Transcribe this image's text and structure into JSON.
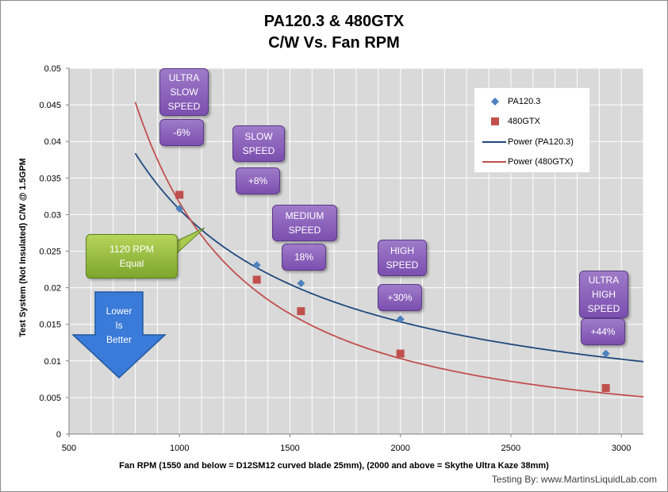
{
  "chart_data": {
    "type": "scatter",
    "title": [
      "PA120.3 & 480GTX",
      "C/W Vs. Fan RPM"
    ],
    "xlabel": "Fan RPM (1550 and below = D12SM12 curved blade 25mm), (2000 and above = Skythe Ultra Kaze 38mm)",
    "ylabel": "Test System (Not Insulated) C/W @ 1.5GPM",
    "xlim": [
      500,
      3100
    ],
    "ylim": [
      0,
      0.05
    ],
    "x_ticks": [
      "500",
      "1000",
      "1500",
      "2000",
      "2500",
      "3000"
    ],
    "x_tick_values": [
      500,
      1000,
      1500,
      2000,
      2500,
      3000
    ],
    "y_ticks": [
      "0",
      "0.005",
      "0.01",
      "0.015",
      "0.02",
      "0.025",
      "0.03",
      "0.035",
      "0.04",
      "0.045",
      "0.05"
    ],
    "y_tick_values": [
      0,
      0.005,
      0.01,
      0.015,
      0.02,
      0.025,
      0.03,
      0.035,
      0.04,
      0.045,
      0.05
    ],
    "grid": true,
    "legend_position": "top-right",
    "series": [
      {
        "name": "PA120.3",
        "marker": "diamond",
        "color": "#4f81bd",
        "x": [
          1000,
          1350,
          1550,
          2000,
          2930
        ],
        "y": [
          0.0308,
          0.0231,
          0.0206,
          0.0157,
          0.011
        ]
      },
      {
        "name": "480GTX",
        "marker": "square",
        "color": "#c0504d",
        "x": [
          1000,
          1350,
          1550,
          2000,
          2930
        ],
        "y": [
          0.0327,
          0.0211,
          0.0168,
          0.011,
          0.0063
        ]
      }
    ],
    "trendlines": [
      {
        "name": "Power (PA120.3)",
        "color": "#1f497d",
        "type": "power",
        "x_range": [
          800,
          3100
        ],
        "coef": 30.7,
        "exp": -1.0
      },
      {
        "name": "Power (480GTX)",
        "color": "#c0504d",
        "type": "power",
        "x_range": [
          800,
          3100
        ],
        "coef": 2215.0,
        "exp": -1.615
      }
    ]
  },
  "annotations": {
    "ultra_slow": "ULTRA\nSLOW\nSPEED",
    "ultra_slow_pct": "-6%",
    "slow": "SLOW\nSPEED",
    "slow_pct": "+8%",
    "medium": "MEDIUM\nSPEED",
    "medium_pct": "18%",
    "high": "HIGH\nSPEED",
    "high_pct": "+30%",
    "ultra_high": "ULTRA\nHIGH\nSPEED",
    "ultra_high_pct": "+44%",
    "equal": "1120 RPM\nEqual",
    "better": "Lower\nIs\nBetter"
  },
  "credit": "Testing By: www.MartinsLiquidLab.com",
  "colors": {
    "plot_bg": "#d9d9d9",
    "grid": "#ffffff",
    "note_purple": "#8a5fb9",
    "note_green": "#92b83a",
    "arrow_blue": "#3a7ad8"
  }
}
